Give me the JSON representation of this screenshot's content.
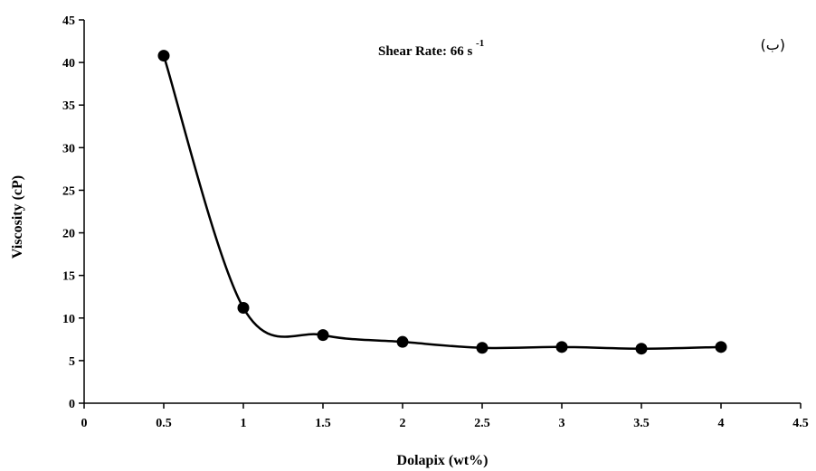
{
  "chart_data": {
    "type": "line",
    "title": "",
    "xlabel": "Dolapix (wt%)",
    "ylabel": "Viscosity (cP)",
    "xlim": [
      0,
      4.5
    ],
    "ylim": [
      0,
      45
    ],
    "xticks": [
      0,
      0.5,
      1,
      1.5,
      2,
      2.5,
      3,
      3.5,
      4,
      4.5
    ],
    "xtick_labels": [
      "0",
      "0.5",
      "1",
      "1.5",
      "2",
      "2.5",
      "3",
      "3.5",
      "4",
      "4.5"
    ],
    "yticks": [
      0,
      5,
      10,
      15,
      20,
      25,
      30,
      35,
      40,
      45
    ],
    "ytick_labels": [
      "0",
      "5",
      "10",
      "15",
      "20",
      "25",
      "30",
      "35",
      "40",
      "45"
    ],
    "grid": false,
    "legend": "none",
    "line_color": "#000000",
    "marker_color": "#000000",
    "series": [
      {
        "x": [
          0.5,
          1,
          1.5,
          2,
          2.5,
          3,
          3.5,
          4
        ],
        "y": [
          40.8,
          11.2,
          8.0,
          7.2,
          6.5,
          6.6,
          6.4,
          6.6
        ]
      }
    ],
    "annotation_prefix": "Shear Rate: 66  s",
    "annotation_exponent": "-1",
    "panel_label": "(ب)"
  }
}
